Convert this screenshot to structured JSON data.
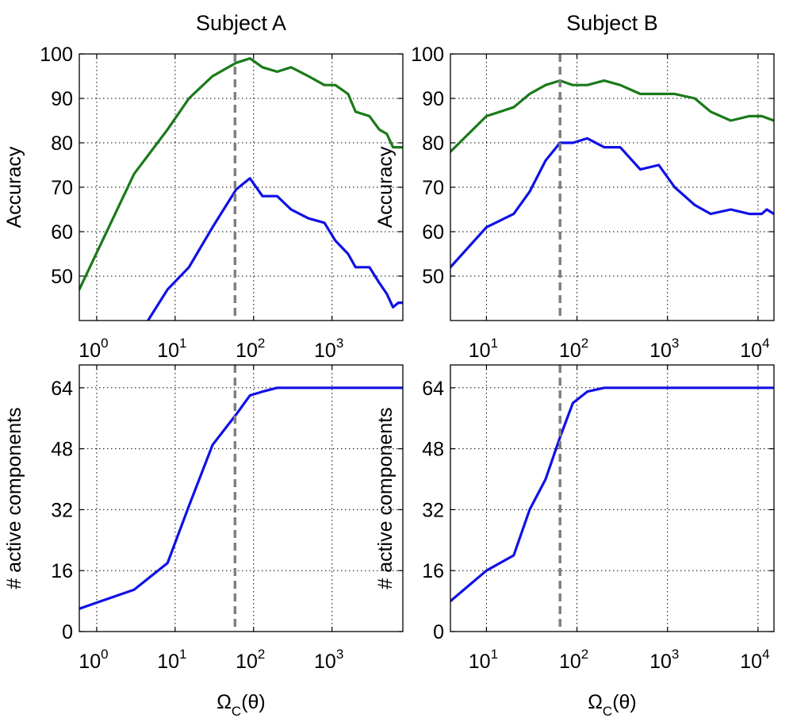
{
  "figure": {
    "colors": {
      "green": "#1a7a1a",
      "blue": "#1010e6",
      "dashed": "#808080"
    }
  },
  "chart_data": [
    {
      "id": "A-accuracy",
      "type": "line",
      "title": "Subject A",
      "xlabel": "",
      "ylabel": "Accuracy",
      "xscale": "log",
      "xlim": [
        0.6,
        8000
      ],
      "ylim": [
        40,
        100
      ],
      "grid": true,
      "xticks": [
        1,
        10,
        100,
        1000
      ],
      "yticks": [
        50,
        60,
        70,
        80,
        90,
        100
      ],
      "tick_labels_x": [
        "0",
        "1",
        "2",
        "3"
      ],
      "vline": 58,
      "series": [
        {
          "color": "green",
          "x": [
            0.6,
            3,
            8,
            15,
            30,
            60,
            90,
            130,
            200,
            300,
            500,
            800,
            1100,
            1600,
            2000,
            3000,
            4000,
            5000,
            6000,
            8000
          ],
          "y": [
            47,
            73,
            83,
            90,
            95,
            98,
            99,
            97,
            96,
            97,
            95,
            93,
            93,
            91,
            87,
            86,
            83,
            82,
            79,
            79
          ]
        },
        {
          "color": "blue",
          "x": [
            4.5,
            8,
            15,
            30,
            60,
            90,
            130,
            200,
            300,
            500,
            800,
            1100,
            1600,
            2000,
            3000,
            4000,
            5000,
            6000,
            7000,
            8000
          ],
          "y": [
            40,
            47,
            52,
            61,
            69.5,
            72,
            68,
            68,
            65,
            63,
            62,
            58,
            55,
            52,
            52,
            48.5,
            46,
            43,
            44,
            44
          ]
        }
      ]
    },
    {
      "id": "B-accuracy",
      "type": "line",
      "title": "Subject B",
      "xlabel": "",
      "ylabel": "Accuracy",
      "xscale": "log",
      "xlim": [
        4,
        15000
      ],
      "ylim": [
        40,
        100
      ],
      "grid": true,
      "xticks": [
        10,
        100,
        1000,
        10000
      ],
      "yticks": [
        50,
        60,
        70,
        80,
        90,
        100
      ],
      "tick_labels_x": [
        "1",
        "2",
        "3",
        "4"
      ],
      "vline": 65,
      "series": [
        {
          "color": "green",
          "x": [
            4,
            10,
            20,
            30,
            45,
            65,
            90,
            130,
            200,
            300,
            500,
            800,
            1200,
            2000,
            3000,
            5000,
            8000,
            11000,
            15000
          ],
          "y": [
            78,
            86,
            88,
            91,
            93,
            94,
            93,
            93,
            94,
            93,
            91,
            91,
            91,
            90,
            87,
            85,
            86,
            86,
            85
          ]
        },
        {
          "color": "blue",
          "x": [
            4,
            10,
            20,
            30,
            45,
            65,
            90,
            130,
            200,
            300,
            500,
            800,
            1200,
            2000,
            3000,
            5000,
            8000,
            11000,
            12500,
            15000
          ],
          "y": [
            52,
            61,
            64,
            69,
            76,
            80,
            80,
            81,
            79,
            79,
            74,
            75,
            70,
            66,
            64,
            65,
            64,
            64,
            65,
            64
          ]
        }
      ]
    },
    {
      "id": "A-components",
      "type": "line",
      "title": "",
      "xlabel": "Ω_C(θ)",
      "ylabel": "# active components",
      "xscale": "log",
      "xlim": [
        0.6,
        8000
      ],
      "ylim": [
        0,
        70
      ],
      "grid": true,
      "xticks": [
        1,
        10,
        100,
        1000
      ],
      "yticks": [
        0,
        16,
        32,
        48,
        64
      ],
      "tick_labels_x": [
        "0",
        "1",
        "2",
        "3"
      ],
      "vline": 58,
      "series": [
        {
          "color": "blue",
          "x": [
            0.6,
            3,
            8,
            15,
            30,
            60,
            90,
            130,
            200,
            300,
            1000,
            8000
          ],
          "y": [
            6,
            11,
            18,
            33,
            49,
            57,
            62,
            63,
            64,
            64,
            64,
            64
          ]
        }
      ]
    },
    {
      "id": "B-components",
      "type": "line",
      "title": "",
      "xlabel": "Ω_C(θ)",
      "ylabel": "# active components",
      "xscale": "log",
      "xlim": [
        4,
        15000
      ],
      "ylim": [
        0,
        70
      ],
      "grid": true,
      "xticks": [
        10,
        100,
        1000,
        10000
      ],
      "yticks": [
        0,
        16,
        32,
        48,
        64
      ],
      "tick_labels_x": [
        "1",
        "2",
        "3",
        "4"
      ],
      "vline": 65,
      "series": [
        {
          "color": "blue",
          "x": [
            4,
            10,
            20,
            30,
            45,
            65,
            90,
            130,
            200,
            300,
            1000,
            15000
          ],
          "y": [
            8,
            16,
            20,
            32,
            40,
            51,
            60,
            63,
            64,
            64,
            64,
            64
          ]
        }
      ]
    }
  ]
}
